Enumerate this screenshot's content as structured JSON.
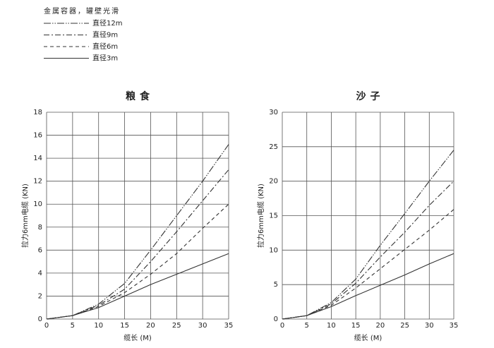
{
  "legend": {
    "title": "金属容器，罐壁光滑",
    "series": [
      {
        "name": "直径12m",
        "dash": "10 2 1.5 2 1.5 2"
      },
      {
        "name": "直径9m",
        "dash": "8 3 2 3"
      },
      {
        "name": "直径6m",
        "dash": "5 4"
      },
      {
        "name": "直径3m",
        "dash": "none"
      }
    ],
    "color": "#333333"
  },
  "chart_data": [
    {
      "type": "line",
      "title": "粮食",
      "x_label": "缆长 (M)",
      "y_label": "拉力6mm电缆 (KN)",
      "x": [
        0,
        5,
        10,
        15,
        20,
        25,
        30,
        35
      ],
      "xlim": [
        0,
        35
      ],
      "xticks": [
        0,
        5,
        10,
        15,
        20,
        25,
        30,
        35
      ],
      "ylim": [
        0,
        18
      ],
      "yticks": [
        0,
        2,
        4,
        6,
        8,
        10,
        12,
        14,
        16,
        18
      ],
      "grid": true,
      "series": [
        {
          "values": [
            0,
            0.3,
            1.3,
            3.1,
            6.0,
            9.0,
            12.0,
            15.2
          ]
        },
        {
          "values": [
            0,
            0.3,
            1.2,
            2.6,
            5.0,
            7.6,
            10.3,
            13.0
          ]
        },
        {
          "values": [
            0,
            0.3,
            1.1,
            2.3,
            3.9,
            5.7,
            7.9,
            10.0
          ]
        },
        {
          "values": [
            0,
            0.3,
            1.0,
            2.0,
            3.0,
            3.9,
            4.8,
            5.7
          ]
        }
      ]
    },
    {
      "type": "line",
      "title": "沙子",
      "x_label": "缆长 (M)",
      "y_label": "拉力6mm电缆 (KN)",
      "x": [
        0,
        5,
        10,
        15,
        20,
        25,
        30,
        35
      ],
      "xlim": [
        0,
        35
      ],
      "xticks": [
        0,
        5,
        10,
        15,
        20,
        25,
        30,
        35
      ],
      "ylim": [
        0,
        30
      ],
      "yticks": [
        0,
        5,
        10,
        15,
        20,
        25,
        30
      ],
      "grid": true,
      "series": [
        {
          "values": [
            0,
            0.5,
            2.4,
            5.8,
            10.7,
            15.3,
            20.0,
            24.5
          ]
        },
        {
          "values": [
            0,
            0.5,
            2.2,
            5.2,
            9.0,
            12.6,
            16.5,
            20.0
          ]
        },
        {
          "values": [
            0,
            0.5,
            2.0,
            4.5,
            7.3,
            10.1,
            12.9,
            15.9
          ]
        },
        {
          "values": [
            0,
            0.5,
            1.8,
            3.4,
            4.9,
            6.4,
            8.0,
            9.5
          ]
        }
      ]
    }
  ]
}
